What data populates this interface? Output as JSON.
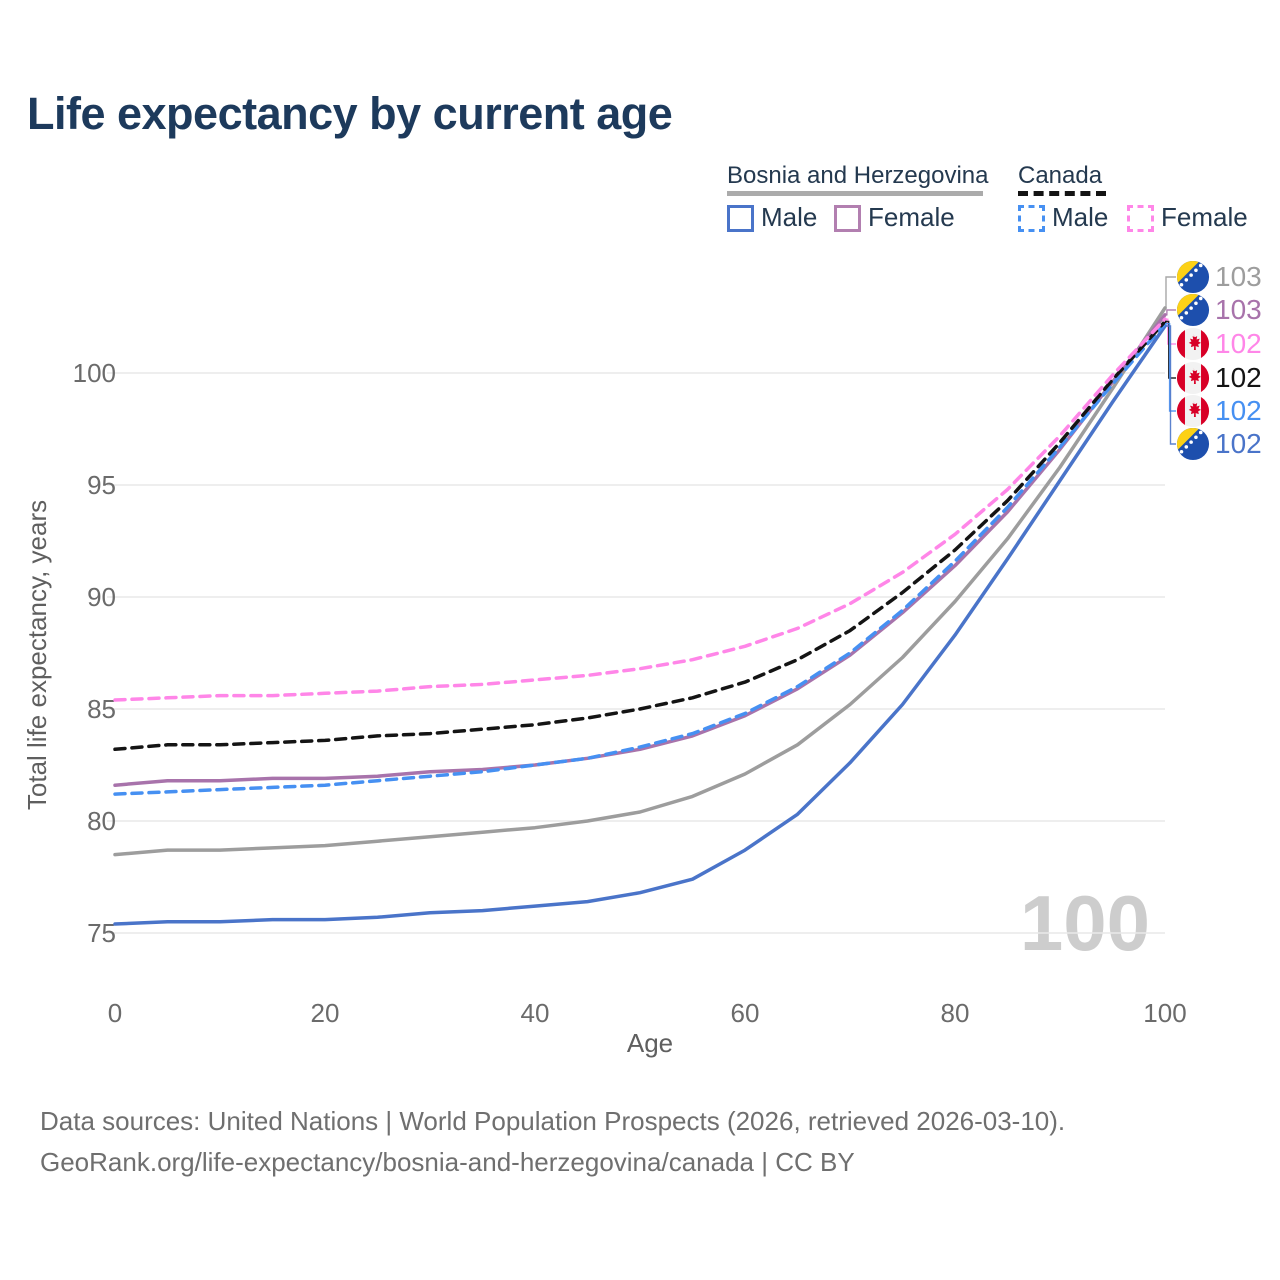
{
  "page": {
    "title": "Life expectancy by current age"
  },
  "legend": {
    "groups": [
      {
        "name": "Bosnia and Herzegovina",
        "line_style": "solid",
        "line_color": "#ababab",
        "items": [
          {
            "label": "Male",
            "box_color": "#4a74c9",
            "box_style": "solid"
          },
          {
            "label": "Female",
            "box_color": "#b27fb0",
            "box_style": "solid"
          }
        ]
      },
      {
        "name": "Canada",
        "line_style": "dashed",
        "line_color": "#141414",
        "items": [
          {
            "label": "Male",
            "box_color": "#4690f2",
            "box_style": "dashed"
          },
          {
            "label": "Female",
            "box_color": "#ff86e8",
            "box_style": "dashed"
          }
        ]
      }
    ]
  },
  "chart_data": {
    "type": "line",
    "title": "Life expectancy by current age",
    "xlabel": "Age",
    "ylabel": "Total life expectancy, years",
    "x_ticks": [
      0,
      20,
      40,
      60,
      80,
      100
    ],
    "y_ticks": [
      75,
      80,
      85,
      90,
      95,
      100
    ],
    "xlim": [
      0,
      100
    ],
    "ylim": [
      75,
      100
    ],
    "grid": "horizontal",
    "legend_position": "top-right",
    "current_age_watermark": "100",
    "x": [
      0,
      5,
      10,
      15,
      20,
      25,
      30,
      35,
      40,
      45,
      50,
      55,
      60,
      65,
      70,
      75,
      80,
      85,
      90,
      95,
      100
    ],
    "series": [
      {
        "name": "Bosnia and Herzegovina",
        "country": "Bosnia and Herzegovina",
        "sex": "Both",
        "flag": "ba",
        "color": "#9d9d9d",
        "dashed": false,
        "end_label": "103",
        "values": [
          78.5,
          78.7,
          78.7,
          78.8,
          78.9,
          79.1,
          79.3,
          79.5,
          79.7,
          80.0,
          80.4,
          81.1,
          82.1,
          83.4,
          85.2,
          87.3,
          89.8,
          92.6,
          95.8,
          99.3,
          102.9
        ]
      },
      {
        "name": "Bosnia and Herzegovina Female",
        "country": "Bosnia and Herzegovina",
        "sex": "Female",
        "flag": "ba",
        "color": "#a873ab",
        "dashed": false,
        "end_label": "103",
        "values": [
          81.6,
          81.8,
          81.8,
          81.9,
          81.9,
          82.0,
          82.2,
          82.3,
          82.5,
          82.8,
          83.2,
          83.8,
          84.7,
          85.9,
          87.4,
          89.3,
          91.4,
          93.8,
          96.6,
          99.6,
          102.6
        ]
      },
      {
        "name": "Canada Female",
        "country": "Canada",
        "sex": "Female",
        "flag": "ca",
        "color": "#ff86e8",
        "dashed": true,
        "end_label": "102",
        "values": [
          85.4,
          85.5,
          85.6,
          85.6,
          85.7,
          85.8,
          86.0,
          86.1,
          86.3,
          86.5,
          86.8,
          87.2,
          87.8,
          88.6,
          89.7,
          91.1,
          92.8,
          94.8,
          97.2,
          99.9,
          102.4
        ]
      },
      {
        "name": "Canada",
        "country": "Canada",
        "sex": "Both",
        "flag": "ca",
        "color": "#141414",
        "dashed": true,
        "end_label": "102",
        "values": [
          83.2,
          83.4,
          83.4,
          83.5,
          83.6,
          83.8,
          83.9,
          84.1,
          84.3,
          84.6,
          85.0,
          85.5,
          86.2,
          87.2,
          88.5,
          90.2,
          92.1,
          94.3,
          96.9,
          99.7,
          102.3
        ]
      },
      {
        "name": "Canada Male",
        "country": "Canada",
        "sex": "Male",
        "flag": "ca",
        "color": "#4690f2",
        "dashed": true,
        "end_label": "102",
        "values": [
          81.2,
          81.3,
          81.4,
          81.5,
          81.6,
          81.8,
          82.0,
          82.2,
          82.5,
          82.8,
          83.3,
          83.9,
          84.8,
          86.0,
          87.5,
          89.4,
          91.6,
          94.0,
          96.7,
          99.5,
          102.2
        ]
      },
      {
        "name": "Bosnia and Herzegovina Male",
        "country": "Bosnia and Herzegovina",
        "sex": "Male",
        "flag": "ba",
        "color": "#4a74c9",
        "dashed": false,
        "end_label": "102",
        "values": [
          75.4,
          75.5,
          75.5,
          75.6,
          75.6,
          75.7,
          75.9,
          76.0,
          76.2,
          76.4,
          76.8,
          77.4,
          78.7,
          80.3,
          82.6,
          85.2,
          88.3,
          91.7,
          95.2,
          98.7,
          102.1
        ]
      }
    ]
  },
  "footer": {
    "line1": "Data sources: United Nations | World Population Prospects (2026, retrieved 2026-03-10).",
    "line2": "GeoRank.org/life-expectancy/bosnia-and-herzegovina/canada | CC BY"
  }
}
